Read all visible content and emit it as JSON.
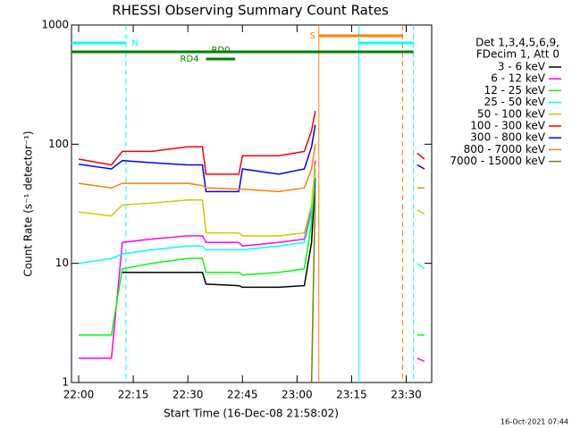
{
  "chart_data": {
    "type": "line",
    "title": "RHESSI Observing Summary Count Rates",
    "x_label": "Start Time (16-Dec-08 21:58:02)",
    "y_label": "Count Rate (s⁻¹ detector⁻¹)",
    "footer": "16-Oct-2021 07:44",
    "legend_title": [
      "Det 1,3,4,5,6,9,",
      "FDecim 1, Att 0"
    ],
    "legend": "right",
    "log_y": true,
    "xlim": [
      "21:58:02",
      "23:37"
    ],
    "xticks": [
      "22:00",
      "22:15",
      "22:30",
      "22:45",
      "23:00",
      "23:15",
      "23:30"
    ],
    "ylim": [
      1,
      1000
    ],
    "yticks": [
      1,
      10,
      100,
      1000
    ],
    "x": [
      "22:00",
      "22:09",
      "22:12",
      "22:20",
      "22:30",
      "22:34",
      "22:35",
      "22:44",
      "22:45",
      "22:55",
      "23:02",
      "23:04",
      "23:05",
      "23:08",
      "23:33",
      "23:35"
    ],
    "series": [
      {
        "name": "3 - 6 keV",
        "color": "#000000",
        "values": [
          null,
          null,
          8.4,
          8.4,
          8.4,
          8.4,
          6.7,
          6.5,
          6.3,
          6.3,
          6.5,
          15,
          52,
          null,
          null,
          null
        ]
      },
      {
        "name": "6 - 12 keV",
        "color": "#ff00ff",
        "values": [
          1.6,
          1.6,
          15,
          16,
          17,
          17,
          15,
          15,
          14,
          15,
          16,
          28,
          73,
          null,
          1.6,
          1.5
        ]
      },
      {
        "name": "12 - 25 keV",
        "color": "#00ff00",
        "values": [
          2.5,
          2.5,
          9,
          10,
          11,
          11,
          8.4,
          8.4,
          8,
          8.4,
          9,
          22,
          62,
          null,
          2.5,
          2.5
        ]
      },
      {
        "name": "25 - 50 keV",
        "color": "#00ffff",
        "values": [
          10,
          11,
          12,
          13,
          14,
          14,
          13,
          13,
          13,
          14,
          15,
          26,
          62,
          null,
          10,
          9
        ]
      },
      {
        "name": "50 - 100 keV",
        "color": "#cccc00",
        "values": [
          27,
          25,
          31,
          32,
          34,
          34,
          18,
          18,
          17,
          17,
          18,
          31,
          67,
          null,
          28,
          26
        ]
      },
      {
        "name": "100 - 300 keV",
        "color": "#ff0000",
        "values": [
          75,
          67,
          87,
          87,
          95,
          95,
          56,
          56,
          80,
          80,
          87,
          130,
          190,
          null,
          84,
          75
        ]
      },
      {
        "name": "300 - 800 keV",
        "color": "#0000ff",
        "values": [
          68,
          62,
          73,
          70,
          67,
          67,
          40,
          40,
          62,
          56,
          62,
          95,
          145,
          null,
          67,
          62
        ]
      },
      {
        "name": "800 - 7000 keV",
        "color": "#ff8000",
        "values": [
          47,
          43,
          47,
          47,
          47,
          45,
          43,
          42,
          42,
          40,
          43,
          62,
          100,
          null,
          43,
          43
        ]
      },
      {
        "name": "7000 - 15000 keV",
        "color": "#808000",
        "values": [
          null,
          null,
          null,
          null,
          null,
          null,
          null,
          null,
          null,
          null,
          null,
          1,
          40,
          null,
          null,
          null
        ]
      }
    ],
    "vlines": [
      {
        "x": "22:13",
        "color": "#00ffff",
        "dashed": true
      },
      {
        "x": "23:06",
        "color": "#ff8000",
        "dashed": false
      },
      {
        "x": "23:17",
        "color": "#00ffff",
        "dashed": false
      },
      {
        "x": "23:29",
        "color": "#ff8000",
        "dashed": true
      },
      {
        "x": "23:32",
        "color": "#00ffff",
        "dashed": true
      }
    ],
    "flags": [
      {
        "label": "N",
        "start": "21:58:02",
        "end": "22:13",
        "color": "#00ffff"
      },
      {
        "label": "S",
        "start": "23:06",
        "end": "23:29",
        "color": "#ff8000"
      },
      {
        "label": "",
        "start": "23:17",
        "end": "23:32",
        "color": "#00ffff"
      },
      {
        "label": "RD0",
        "start": "21:58:02",
        "end": "23:32",
        "color": "#008000"
      },
      {
        "label": "RD4",
        "start": "22:35",
        "end": "22:43",
        "color": "#008000"
      }
    ]
  }
}
